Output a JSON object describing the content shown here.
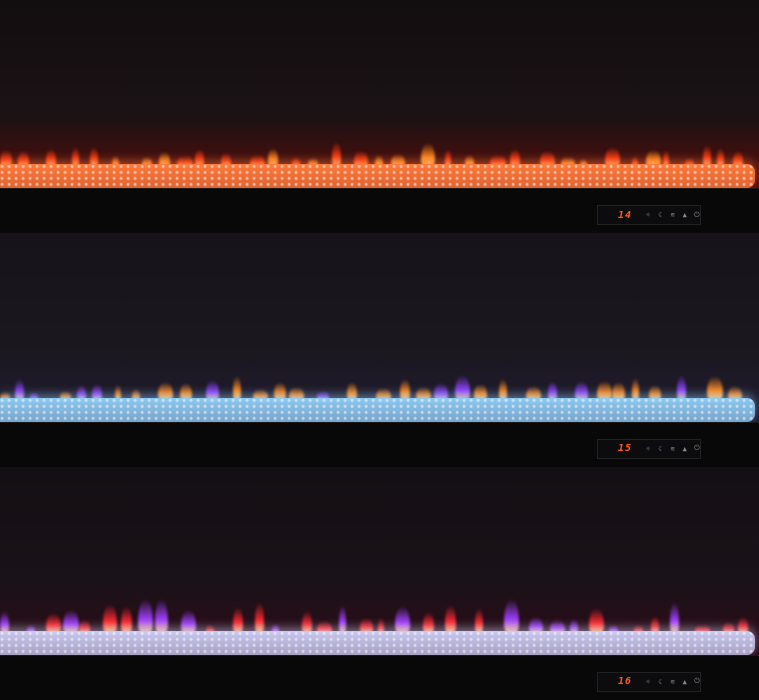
{
  "panels": [
    {
      "display": "14",
      "bed_color": "#ff7a3c",
      "flame_colors": [
        "#ff3a10",
        "#ff8a20"
      ],
      "glow": "#5a0c08"
    },
    {
      "display": "15",
      "bed_color": "#8ec8f0",
      "flame_colors": [
        "#ff8a20",
        "#9040ff"
      ],
      "glow": "#201a30"
    },
    {
      "display": "16",
      "bed_color": "#c8c8f0",
      "flame_colors": [
        "#ff2a30",
        "#a040ff"
      ],
      "glow": "#300a18"
    }
  ],
  "control_icons": [
    "light-icon",
    "timer-icon",
    "heat-icon",
    "flame-icon",
    "power-icon"
  ]
}
